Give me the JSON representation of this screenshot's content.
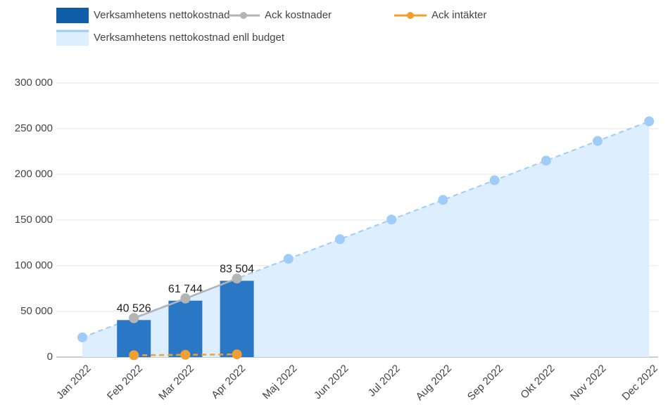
{
  "chart_data": {
    "type": "bar",
    "categories": [
      "Jan 2022",
      "Feb 2022",
      "Mar 2022",
      "Apr 2022",
      "Maj 2022",
      "Jun 2022",
      "Jul 2022",
      "Aug 2022",
      "Sep 2022",
      "Okt 2022",
      "Nov 2022",
      "Dec 2022"
    ],
    "series": [
      {
        "name": "Verksamhetens nettokostnad",
        "type": "bar",
        "color": "#2a78c5",
        "values": [
          null,
          40526,
          61744,
          83504,
          null,
          null,
          null,
          null,
          null,
          null,
          null,
          null
        ],
        "value_labels": [
          null,
          "40 526",
          "61 744",
          "83 504",
          null,
          null,
          null,
          null,
          null,
          null,
          null,
          null
        ]
      },
      {
        "name": "Ack kostnader",
        "type": "line",
        "color": "#b4b4b4",
        "line_style": "solid",
        "values": [
          null,
          42500,
          64000,
          86000,
          null,
          null,
          null,
          null,
          null,
          null,
          null,
          null
        ]
      },
      {
        "name": "Ack intäkter",
        "type": "line",
        "color": "#f0a030",
        "line_style": "dashed",
        "values": [
          null,
          2000,
          2500,
          3000,
          null,
          null,
          null,
          null,
          null,
          null,
          null,
          null
        ]
      },
      {
        "name": "Verksamhetens nettokostnad enll budget",
        "type": "area",
        "color": "#9fcdf8",
        "fill": "#ddeeff",
        "line_style": "dashed",
        "values": [
          21500,
          43000,
          64500,
          86000,
          107500,
          129000,
          150500,
          172000,
          193500,
          215000,
          236500,
          258000
        ]
      }
    ],
    "ylim": [
      0,
      300000
    ],
    "yticks": [
      {
        "value": 0,
        "label": "0"
      },
      {
        "value": 50000,
        "label": "50 000"
      },
      {
        "value": 100000,
        "label": "100 000"
      },
      {
        "value": 150000,
        "label": "150 000"
      },
      {
        "value": 200000,
        "label": "200 000"
      },
      {
        "value": 250000,
        "label": "250 000"
      },
      {
        "value": 300000,
        "label": "300 000"
      }
    ],
    "grid": true,
    "legend": "top-left"
  }
}
